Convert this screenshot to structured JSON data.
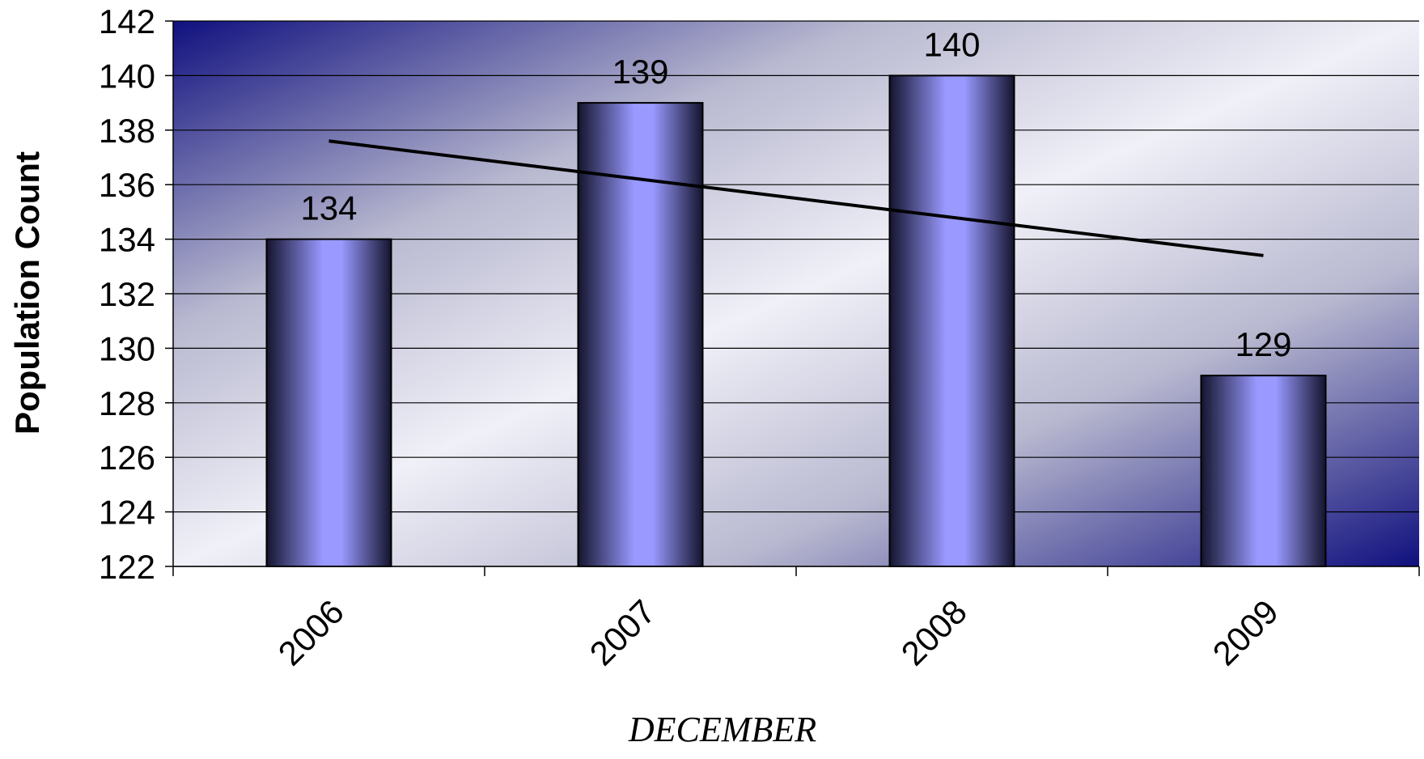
{
  "chart_data": {
    "type": "bar",
    "categories": [
      "2006",
      "2007",
      "2008",
      "2009"
    ],
    "values": [
      134,
      139,
      140,
      129
    ],
    "data_labels": [
      "134",
      "139",
      "140",
      "129"
    ],
    "title": "",
    "xlabel": "DECEMBER",
    "ylabel": "Population Count",
    "ylim": [
      122,
      142
    ],
    "yticks": [
      "122",
      "124",
      "126",
      "128",
      "130",
      "132",
      "134",
      "136",
      "138",
      "140",
      "142"
    ],
    "grid": true,
    "legend": "none",
    "trendline": {
      "type": "linear",
      "start": 137.6,
      "end": 133.4
    },
    "colors": {
      "bar_center": "#9999ff",
      "bar_edge": "#14142e",
      "plot_dark": "#10107f",
      "plot_light": "#f0f0f8",
      "trendline": "#000000"
    }
  }
}
